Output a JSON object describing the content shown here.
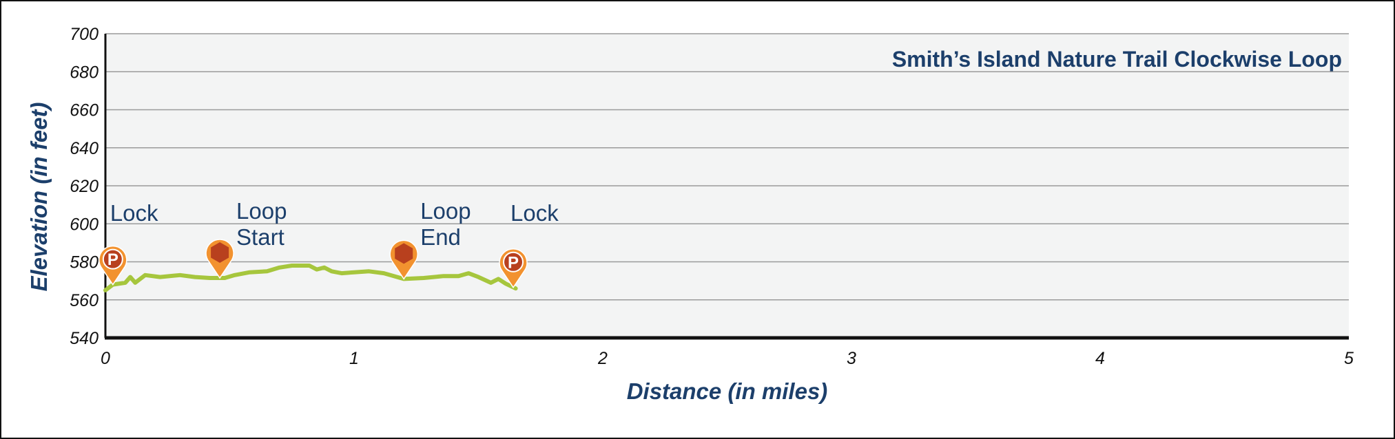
{
  "chart_data": {
    "type": "line",
    "title": "Smith’s Island Nature Trail Clockwise Loop",
    "xlabel": "Distance (in miles)",
    "ylabel": "Elevation (in feet)",
    "xlim": [
      0,
      5
    ],
    "ylim": [
      540,
      700
    ],
    "x_ticks": [
      "0",
      "1",
      "2",
      "3",
      "4",
      "5"
    ],
    "y_ticks": [
      "540",
      "560",
      "580",
      "600",
      "620",
      "640",
      "660",
      "680",
      "700"
    ],
    "grid": true,
    "colors": {
      "line": "#a6c63d",
      "plot_bg": "#f3f4f4",
      "grid": "#9a9a9a",
      "axis": "#111111",
      "title": "#1c3f6b",
      "pin_fill": "#f2922f",
      "pin_inner": "#b8401e"
    },
    "series": [
      {
        "values": [
          [
            0.0,
            565
          ],
          [
            0.03,
            568
          ],
          [
            0.08,
            569
          ],
          [
            0.1,
            572
          ],
          [
            0.12,
            569
          ],
          [
            0.16,
            573
          ],
          [
            0.22,
            572
          ],
          [
            0.3,
            573
          ],
          [
            0.36,
            572
          ],
          [
            0.42,
            571.5
          ],
          [
            0.48,
            571.5
          ],
          [
            0.52,
            573
          ],
          [
            0.58,
            574.5
          ],
          [
            0.65,
            575
          ],
          [
            0.7,
            577
          ],
          [
            0.75,
            578
          ],
          [
            0.82,
            578
          ],
          [
            0.85,
            576
          ],
          [
            0.88,
            577
          ],
          [
            0.91,
            575
          ],
          [
            0.95,
            574
          ],
          [
            1.0,
            574.5
          ],
          [
            1.06,
            575
          ],
          [
            1.12,
            574
          ],
          [
            1.2,
            571
          ],
          [
            1.28,
            571.5
          ],
          [
            1.36,
            572.5
          ],
          [
            1.42,
            572.5
          ],
          [
            1.46,
            574
          ],
          [
            1.5,
            572
          ],
          [
            1.55,
            569
          ],
          [
            1.58,
            571
          ],
          [
            1.61,
            568.5
          ],
          [
            1.65,
            566
          ]
        ]
      }
    ],
    "markers": [
      {
        "label": [
          "Lock"
        ],
        "icon": "parking-pin-icon",
        "letter": "P",
        "x": 0.03,
        "y": 568
      },
      {
        "label": [
          "Loop",
          "Start"
        ],
        "icon": "trailhead-hexagon-pin-icon",
        "letter": "",
        "x": 0.46,
        "y": 571.5
      },
      {
        "label": [
          "Loop",
          "End"
        ],
        "icon": "trailhead-hexagon-pin-icon",
        "letter": "",
        "x": 1.2,
        "y": 571
      },
      {
        "label": [
          "Lock"
        ],
        "icon": "parking-pin-icon",
        "letter": "P",
        "x": 1.64,
        "y": 566.5
      }
    ]
  }
}
